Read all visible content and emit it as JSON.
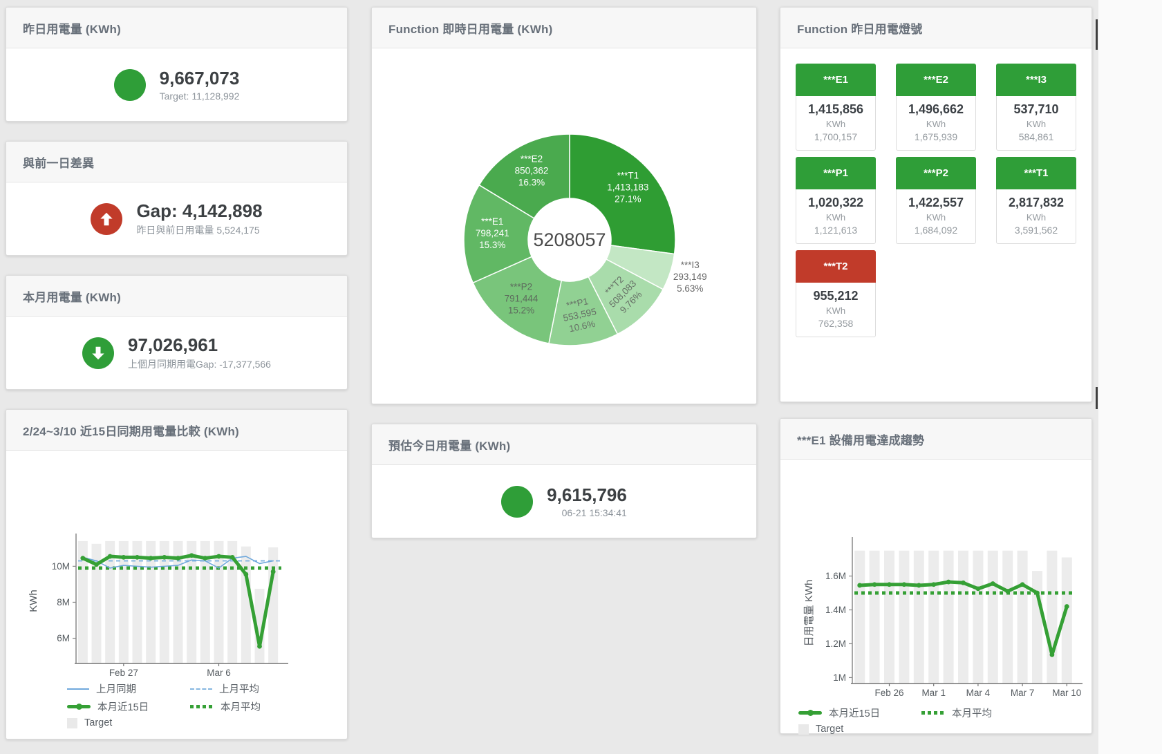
{
  "app": {
    "background": "#e9e9e9"
  },
  "theme": {
    "green": "#2f9e38",
    "red": "#c13b2a",
    "chart_green": "#35a035",
    "chart_blue": "#6fa8dc",
    "target_gray": "#ececec"
  },
  "cards": {
    "yesterday": {
      "title": "昨日用電量 (KWh)",
      "value": "9,667,073",
      "subtitle": "Target: 11,128,992",
      "status_color": "#2f9e38"
    },
    "day_gap": {
      "title": "與前一日差異",
      "value": "Gap: 4,142,898",
      "subtitle": "昨日與前日用電量 5,524,175",
      "status_color": "#c13b2a",
      "direction": "up"
    },
    "month": {
      "title": "本月用電量 (KWh)",
      "value": "97,026,961",
      "subtitle": "上個月同期用電Gap: -17,377,566",
      "status_color": "#2f9e38",
      "direction": "down"
    },
    "realtime_pie": {
      "title": "Function 即時日用電量 (KWh)"
    },
    "estimate": {
      "title": "預估今日用電量 (KWh)",
      "value": "9,615,796",
      "subtitle": "06-21 15:34:41",
      "status_color": "#2f9e38"
    },
    "lights": {
      "title": "Function 昨日用電燈號",
      "tiles": [
        {
          "label": "***E1",
          "value": "1,415,856",
          "unit": "KWh",
          "target": "1,700,157",
          "status": "green"
        },
        {
          "label": "***E2",
          "value": "1,496,662",
          "unit": "KWh",
          "target": "1,675,939",
          "status": "green"
        },
        {
          "label": "***I3",
          "value": "537,710",
          "unit": "KWh",
          "target": "584,861",
          "status": "green"
        },
        {
          "label": "***P1",
          "value": "1,020,322",
          "unit": "KWh",
          "target": "1,121,613",
          "status": "green"
        },
        {
          "label": "***P2",
          "value": "1,422,557",
          "unit": "KWh",
          "target": "1,684,092",
          "status": "green"
        },
        {
          "label": "***T1",
          "value": "2,817,832",
          "unit": "KWh",
          "target": "3,591,562",
          "status": "green"
        },
        {
          "label": "***T2",
          "value": "955,212",
          "unit": "KWh",
          "target": "762,358",
          "status": "red"
        }
      ]
    },
    "compare": {
      "title": "2/24~3/10 近15日同期用電量比較 (KWh)"
    },
    "e1_trend": {
      "title": "***E1 設備用電達成趨勢"
    }
  },
  "chart_data": [
    {
      "id": "realtime_pie",
      "type": "pie",
      "title": "Function 即時日用電量 (KWh)",
      "center_label": "5208057",
      "slices": [
        {
          "name": "***T1",
          "value": 1413183,
          "value_label": "1,413,183",
          "pct_label": "27.1%",
          "color": "#2f9d33",
          "label_color": "#ffffff",
          "label_rotation": 0,
          "label_outside": false
        },
        {
          "name": "***I3",
          "value": 293149,
          "value_label": "293,149",
          "pct_label": "5.63%",
          "color": "#c3e7c4",
          "label_color": "#666666",
          "label_rotation": 0,
          "label_outside": true
        },
        {
          "name": "***T2",
          "value": 508083,
          "value_label": "508,083",
          "pct_label": "9.76%",
          "color": "#a9dcab",
          "label_color": "#667066",
          "label_rotation": -45,
          "label_outside": false
        },
        {
          "name": "***P1",
          "value": 553595,
          "value_label": "553,595",
          "pct_label": "10.6%",
          "color": "#91d193",
          "label_color": "#667066",
          "label_rotation": -12,
          "label_outside": false
        },
        {
          "name": "***P2",
          "value": 791444,
          "value_label": "791,444",
          "pct_label": "15.2%",
          "color": "#79c57b",
          "label_color": "#5d6b5d",
          "label_rotation": 0,
          "label_outside": false
        },
        {
          "name": "***E1",
          "value": 798241,
          "value_label": "798,241",
          "pct_label": "15.3%",
          "color": "#61b864",
          "label_color": "#ffffff",
          "label_rotation": 0,
          "label_outside": false
        },
        {
          "name": "***E2",
          "value": 850362,
          "value_label": "850,362",
          "pct_label": "16.3%",
          "color": "#4aaa4e",
          "label_color": "#ffffff",
          "label_rotation": 0,
          "label_outside": false
        }
      ]
    },
    {
      "id": "compare",
      "type": "line",
      "title": "2/24~3/10 近15日同期用電量比較 (KWh)",
      "ylabel": "KWh",
      "unit": "millions of KWh",
      "categories": [
        "Feb 24",
        "Feb 25",
        "Feb 26",
        "Feb 27",
        "Feb 28",
        "Mar 1",
        "Mar 2",
        "Mar 3",
        "Mar 4",
        "Mar 5",
        "Mar 6",
        "Mar 7",
        "Mar 8",
        "Mar 9",
        "Mar 10"
      ],
      "x_axis_labels": [
        {
          "index": 3,
          "label": "Feb 27"
        },
        {
          "index": 10,
          "label": "Mar 6"
        }
      ],
      "y_ticks": [
        {
          "value": 6,
          "label": "6M"
        },
        {
          "value": 8,
          "label": "8M"
        },
        {
          "value": 10,
          "label": "10M"
        }
      ],
      "y_domain": [
        4.6,
        11.55
      ],
      "grid": false,
      "legend_position": "bottom-left",
      "series": [
        {
          "name": "Target",
          "type": "bar",
          "color": "#ececec",
          "values": [
            11.4,
            11.25,
            11.4,
            11.4,
            11.4,
            11.4,
            11.4,
            11.4,
            11.4,
            11.4,
            11.4,
            11.4,
            11.1,
            8.75,
            11.05
          ]
        },
        {
          "name": "上月同期",
          "type": "line",
          "color": "#6fa8dc",
          "line_width": 1.6,
          "values": [
            10.5,
            10.3,
            9.9,
            10.05,
            10.0,
            9.95,
            10.0,
            10.05,
            10.35,
            10.3,
            9.9,
            10.45,
            10.55,
            10.15,
            10.3
          ]
        },
        {
          "name": "上月平均",
          "type": "average_line",
          "color": "#85b6e0",
          "line_style": "dashed",
          "value": 10.3
        },
        {
          "name": "本月近15日",
          "type": "line",
          "color": "#35a035",
          "line_width": 5,
          "markers": true,
          "values": [
            10.45,
            10.1,
            10.55,
            10.5,
            10.5,
            10.45,
            10.5,
            10.45,
            10.6,
            10.45,
            10.55,
            10.5,
            9.55,
            5.55,
            9.7
          ]
        },
        {
          "name": "本月平均",
          "type": "average_line",
          "color": "#35a035",
          "line_style": "dotted",
          "value": 9.9
        }
      ],
      "legend_rows": [
        [
          {
            "label": "上月同期",
            "swatch": "line",
            "color": "#6fa8dc"
          },
          {
            "label": "上月平均",
            "swatch": "dash",
            "color": "#85b6e0"
          }
        ],
        [
          {
            "label": "本月近15日",
            "swatch": "thick",
            "color": "#35a035"
          },
          {
            "label": "本月平均",
            "swatch": "dots",
            "color": "#35a035"
          }
        ],
        [
          {
            "label": "Target",
            "swatch": "square",
            "color": "#e9e9e9"
          }
        ]
      ]
    },
    {
      "id": "e1_trend",
      "type": "line",
      "title": "***E1 設備用電達成趨勢",
      "ylabel": "日用電量 KWh",
      "unit": "millions of KWh",
      "categories": [
        "Feb 24",
        "Feb 25",
        "Feb 26",
        "Feb 27",
        "Feb 28",
        "Mar 1",
        "Mar 2",
        "Mar 3",
        "Mar 4",
        "Mar 5",
        "Mar 6",
        "Mar 7",
        "Mar 8",
        "Mar 9",
        "Mar 10"
      ],
      "x_axis_labels": [
        {
          "index": 2,
          "label": "Feb 26"
        },
        {
          "index": 5,
          "label": "Mar 1"
        },
        {
          "index": 8,
          "label": "Mar 4"
        },
        {
          "index": 11,
          "label": "Mar 7"
        },
        {
          "index": 14,
          "label": "Mar 10"
        }
      ],
      "y_ticks": [
        {
          "value": 1,
          "label": "1M"
        },
        {
          "value": 1.2,
          "label": "1.2M"
        },
        {
          "value": 1.4,
          "label": "1.4M"
        },
        {
          "value": 1.6,
          "label": "1.6M"
        }
      ],
      "y_domain": [
        0.965,
        1.798
      ],
      "grid": false,
      "legend_position": "bottom-left",
      "series": [
        {
          "name": "Target",
          "type": "bar",
          "color": "#ececec",
          "values": [
            1.75,
            1.75,
            1.75,
            1.75,
            1.75,
            1.75,
            1.75,
            1.75,
            1.75,
            1.75,
            1.75,
            1.75,
            1.63,
            1.75,
            1.71
          ]
        },
        {
          "name": "本月近15日",
          "type": "line",
          "color": "#35a035",
          "line_width": 5,
          "markers": true,
          "values": [
            1.545,
            1.55,
            1.55,
            1.55,
            1.545,
            1.55,
            1.565,
            1.56,
            1.525,
            1.555,
            1.51,
            1.55,
            1.5,
            1.135,
            1.42
          ]
        },
        {
          "name": "本月平均",
          "type": "average_line",
          "color": "#35a035",
          "line_style": "dotted",
          "value": 1.5
        }
      ],
      "legend_rows": [
        [
          {
            "label": "本月近15日",
            "swatch": "thick",
            "color": "#35a035"
          },
          {
            "label": "本月平均",
            "swatch": "dots",
            "color": "#35a035"
          }
        ],
        [
          {
            "label": "Target",
            "swatch": "square",
            "color": "#e9e9e9"
          }
        ]
      ]
    }
  ]
}
